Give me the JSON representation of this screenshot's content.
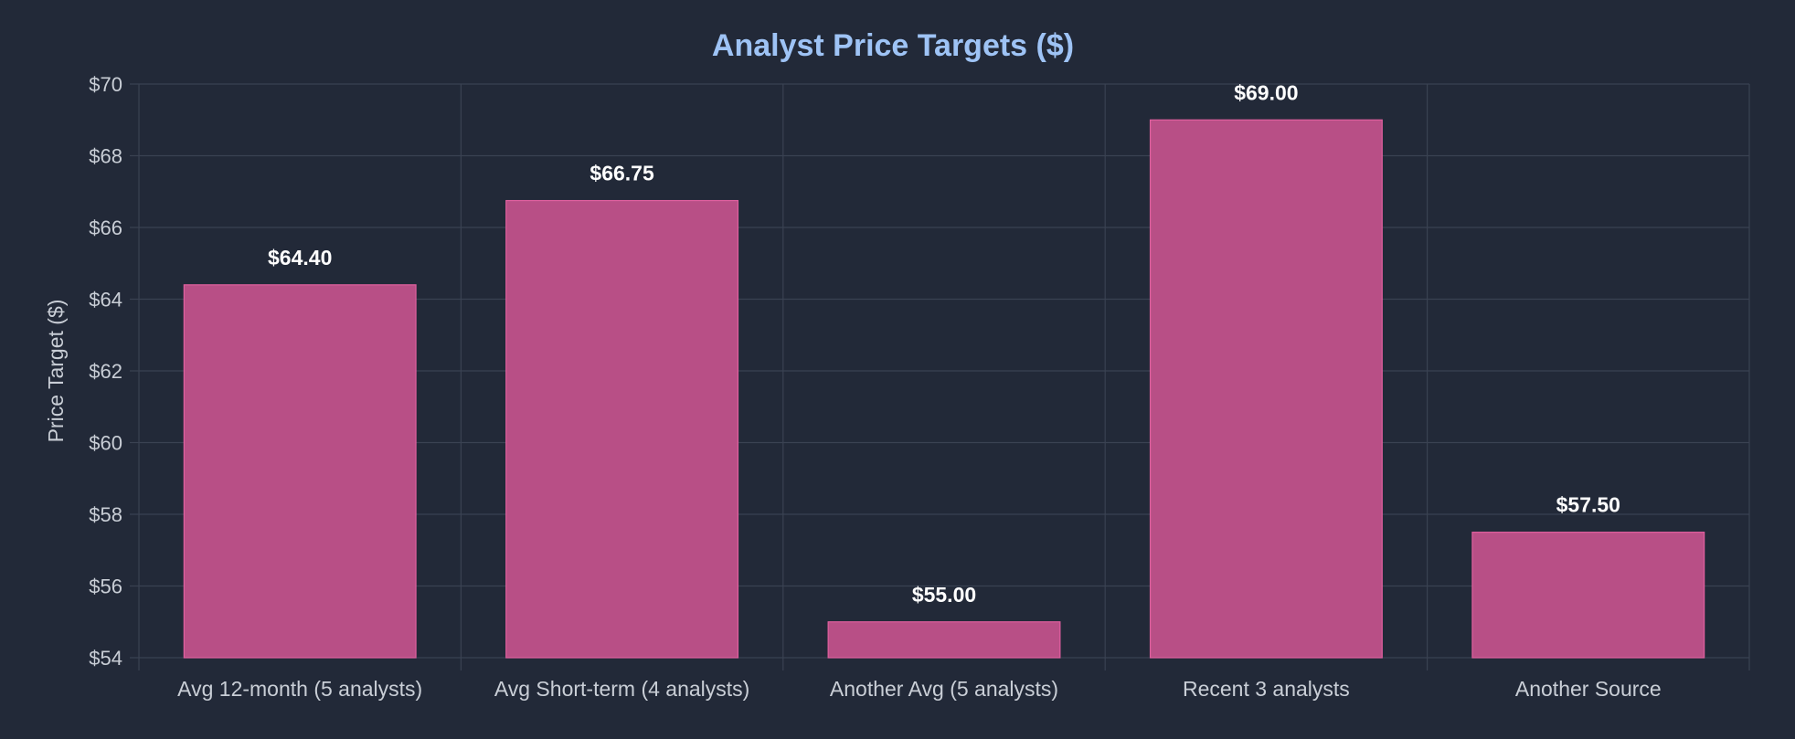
{
  "chart_data": {
    "type": "bar",
    "title": "Analyst Price Targets ($)",
    "xlabel": "",
    "ylabel": "Price Target ($)",
    "categories": [
      "Avg 12-month (5 analysts)",
      "Avg Short-term (4 analysts)",
      "Another Avg (5 analysts)",
      "Recent 3 analysts",
      "Another Source"
    ],
    "values": [
      64.4,
      66.75,
      55.0,
      69.0,
      57.5
    ],
    "value_labels": [
      "$64.40",
      "$66.75",
      "$55.00",
      "$69.00",
      "$57.50"
    ],
    "ylim": [
      54,
      70
    ],
    "yticks": [
      54,
      56,
      58,
      60,
      62,
      64,
      66,
      68,
      70
    ],
    "ytick_labels": [
      "$54",
      "$56",
      "$58",
      "$60",
      "$62",
      "$64",
      "$66",
      "$68",
      "$70"
    ],
    "grid": true,
    "legend": "none",
    "colors": {
      "background": "#222938",
      "title": "#9ec3f5",
      "bar_fill": "#b84f86",
      "bar_stroke": "#e0609f",
      "grid": "#3a4252",
      "axis_text": "#c9ced6",
      "value_label": "#ffffff"
    }
  }
}
